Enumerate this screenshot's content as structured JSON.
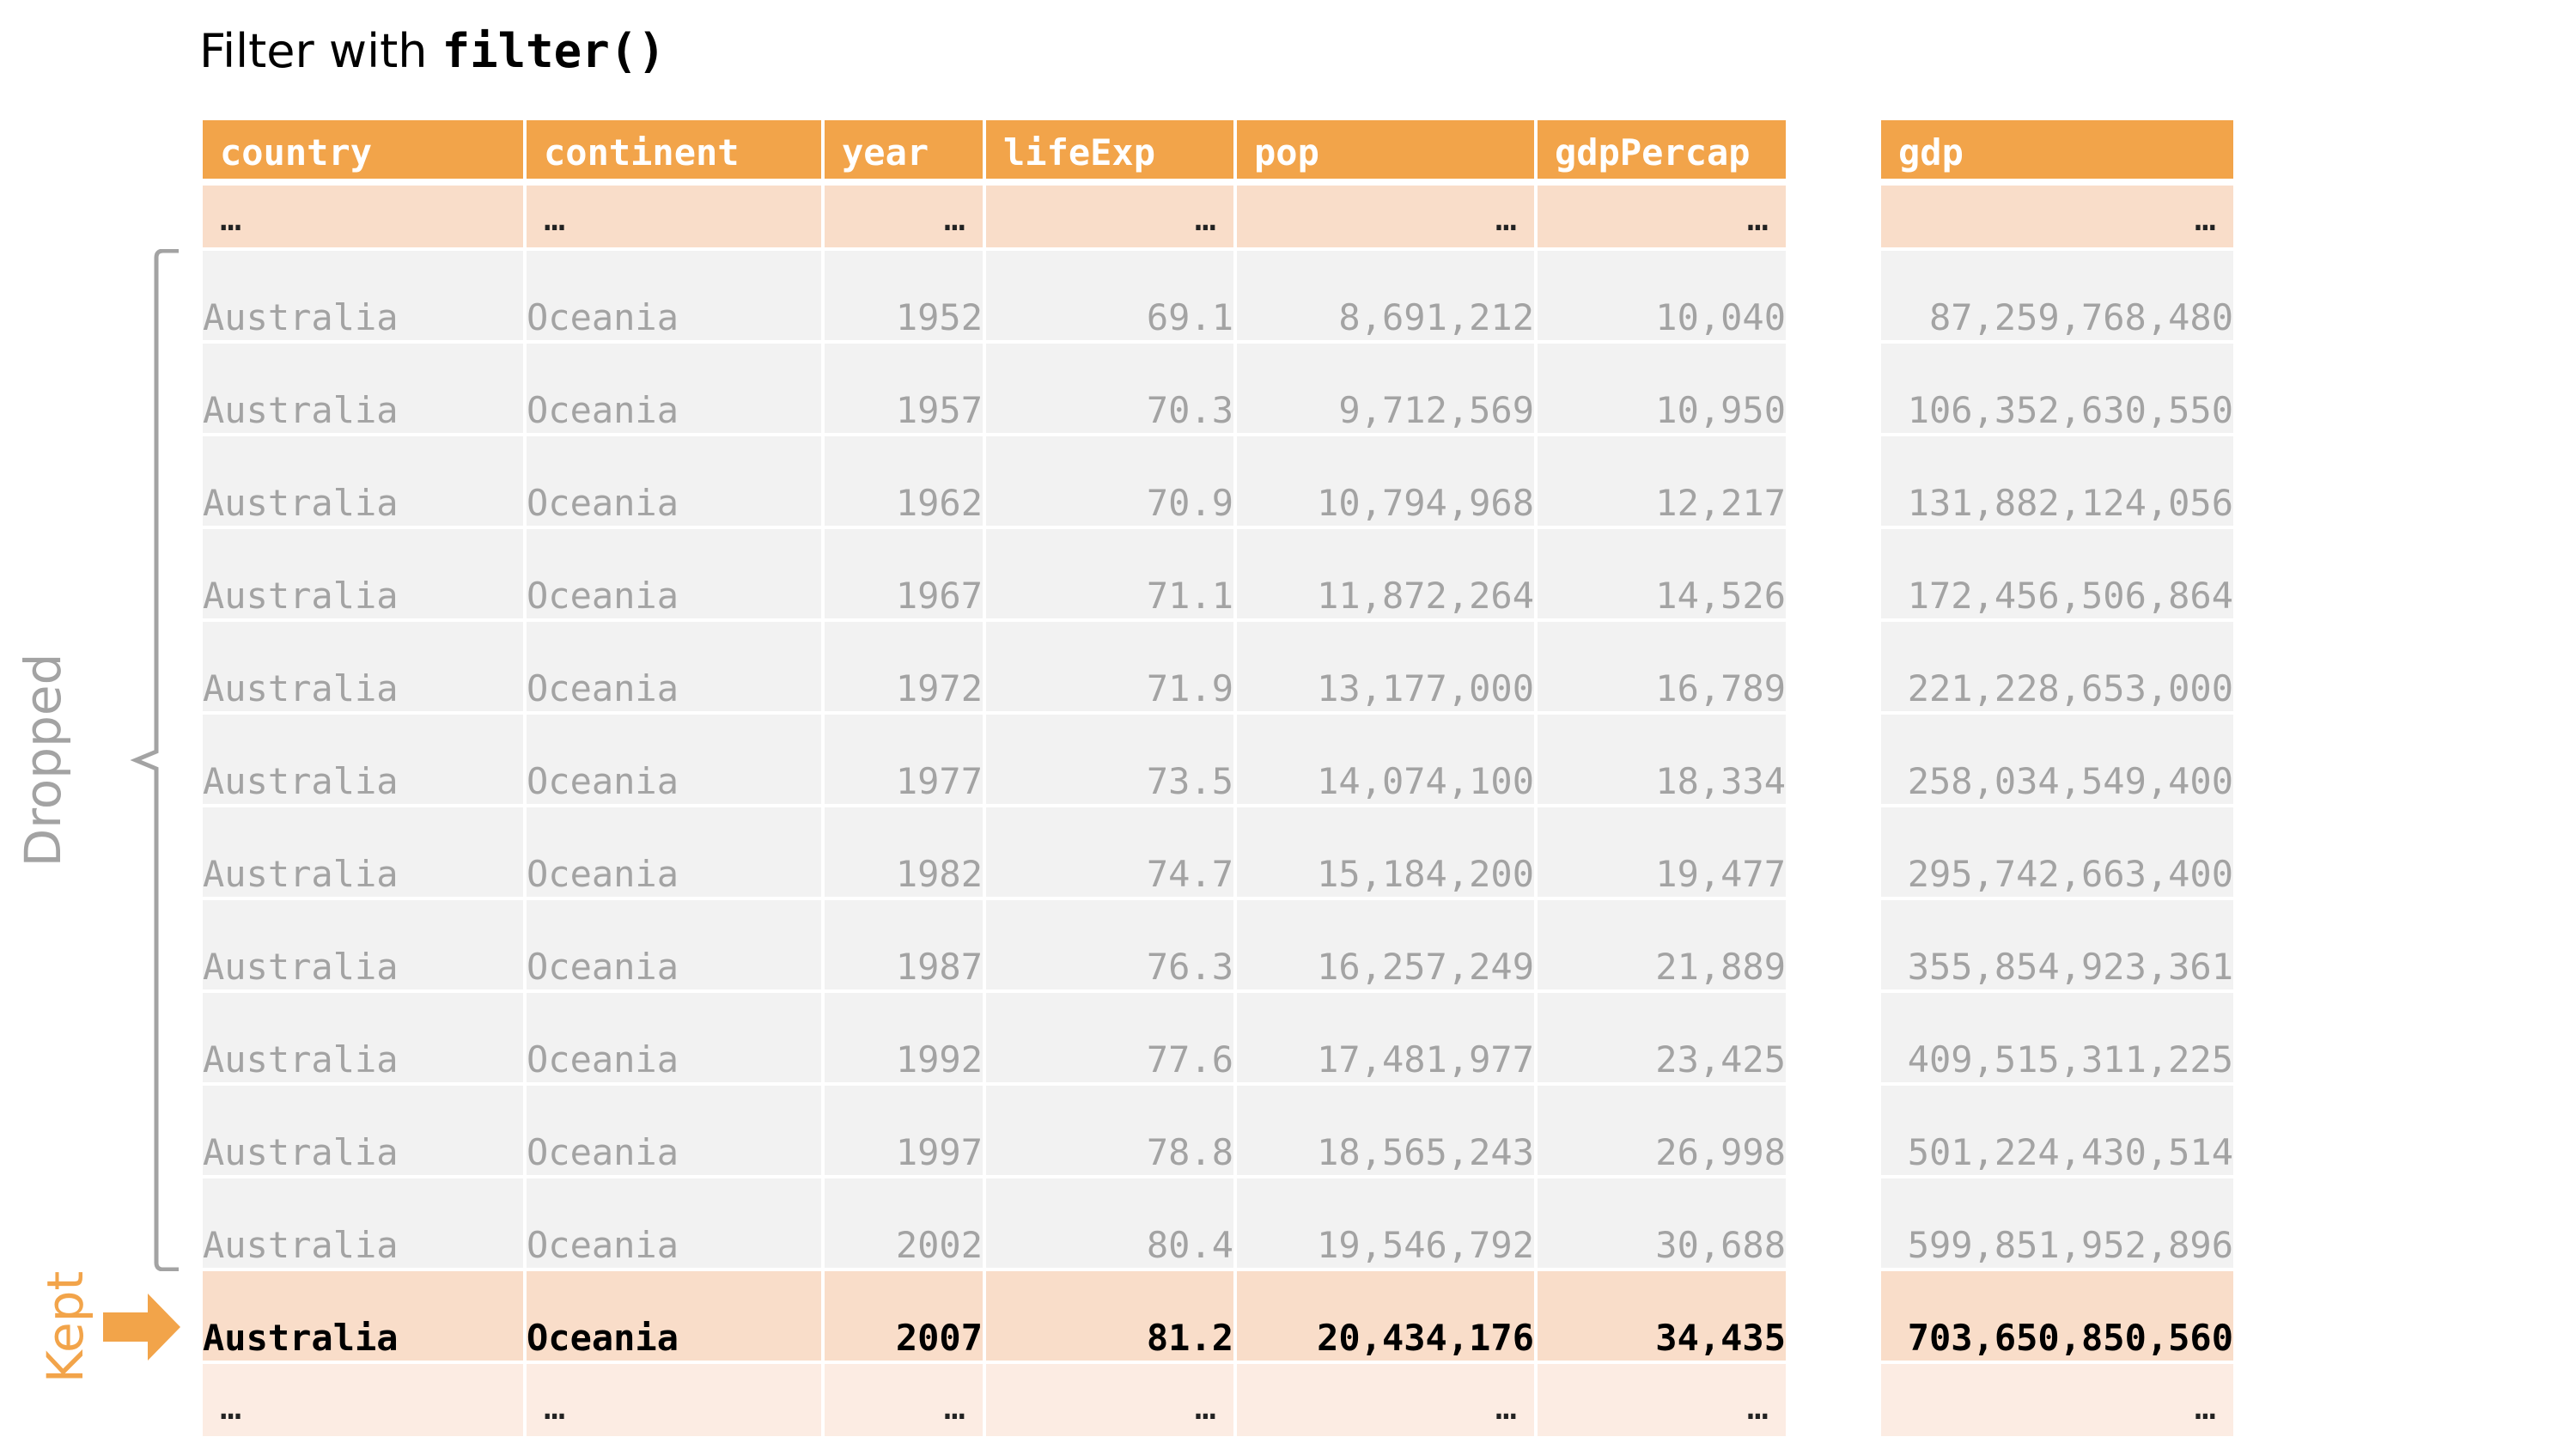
{
  "title": {
    "prefix": "Filter with ",
    "code": "filter()"
  },
  "labels": {
    "dropped": "Dropped",
    "kept": "Kept"
  },
  "ellipsis": "…",
  "colors": {
    "header": "#f2a44a",
    "kept_row": "#f9ddc9",
    "dropped_row": "#f2f2f2",
    "dropped_text": "#a3a3a3"
  },
  "icons": {
    "bracket": "left-brace-icon",
    "arrow": "right-arrow-icon"
  },
  "table": {
    "columns": [
      "country",
      "continent",
      "year",
      "lifeExp",
      "pop",
      "gdpPercap",
      "gdp"
    ],
    "dropped_rows": [
      [
        "Australia",
        "Oceania",
        "1952",
        "69.1",
        "8,691,212",
        "10,040",
        "87,259,768,480"
      ],
      [
        "Australia",
        "Oceania",
        "1957",
        "70.3",
        "9,712,569",
        "10,950",
        "106,352,630,550"
      ],
      [
        "Australia",
        "Oceania",
        "1962",
        "70.9",
        "10,794,968",
        "12,217",
        "131,882,124,056"
      ],
      [
        "Australia",
        "Oceania",
        "1967",
        "71.1",
        "11,872,264",
        "14,526",
        "172,456,506,864"
      ],
      [
        "Australia",
        "Oceania",
        "1972",
        "71.9",
        "13,177,000",
        "16,789",
        "221,228,653,000"
      ],
      [
        "Australia",
        "Oceania",
        "1977",
        "73.5",
        "14,074,100",
        "18,334",
        "258,034,549,400"
      ],
      [
        "Australia",
        "Oceania",
        "1982",
        "74.7",
        "15,184,200",
        "19,477",
        "295,742,663,400"
      ],
      [
        "Australia",
        "Oceania",
        "1987",
        "76.3",
        "16,257,249",
        "21,889",
        "355,854,923,361"
      ],
      [
        "Australia",
        "Oceania",
        "1992",
        "77.6",
        "17,481,977",
        "23,425",
        "409,515,311,225"
      ],
      [
        "Australia",
        "Oceania",
        "1997",
        "78.8",
        "18,565,243",
        "26,998",
        "501,224,430,514"
      ],
      [
        "Australia",
        "Oceania",
        "2002",
        "80.4",
        "19,546,792",
        "30,688",
        "599,851,952,896"
      ]
    ],
    "kept_row": [
      "Australia",
      "Oceania",
      "2007",
      "81.2",
      "20,434,176",
      "34,435",
      "703,650,850,560"
    ]
  }
}
